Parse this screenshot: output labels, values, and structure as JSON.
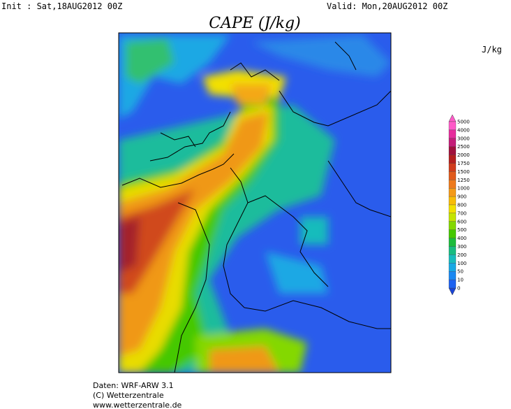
{
  "header": {
    "init": "Init : Sat,18AUG2012 00Z",
    "valid": "Valid: Mon,20AUG2012 00Z",
    "title": "CAPE (J/kg)"
  },
  "colorbar": {
    "unit": "J/kg",
    "levels": [
      5000,
      4000,
      3000,
      2500,
      2000,
      1750,
      1500,
      1250,
      1000,
      900,
      800,
      700,
      600,
      500,
      400,
      300,
      200,
      100,
      50,
      10,
      0
    ],
    "colors": [
      "#ff5ac8",
      "#e62c9c",
      "#c41c78",
      "#a0103c",
      "#b41e1e",
      "#d03c1c",
      "#e05a1c",
      "#ee7a1c",
      "#f49a18",
      "#f8bc08",
      "#f2e000",
      "#c4e400",
      "#84d800",
      "#44c800",
      "#1cbc3c",
      "#18bc80",
      "#18bcbc",
      "#18a8e4",
      "#1a88f2",
      "#1e62f0",
      "#1a44d6"
    ]
  },
  "footer": {
    "lines": [
      "Daten: WRF-ARW 3.1",
      "(C) Wetterzentrale",
      "www.wetterzentrale.de"
    ]
  }
}
